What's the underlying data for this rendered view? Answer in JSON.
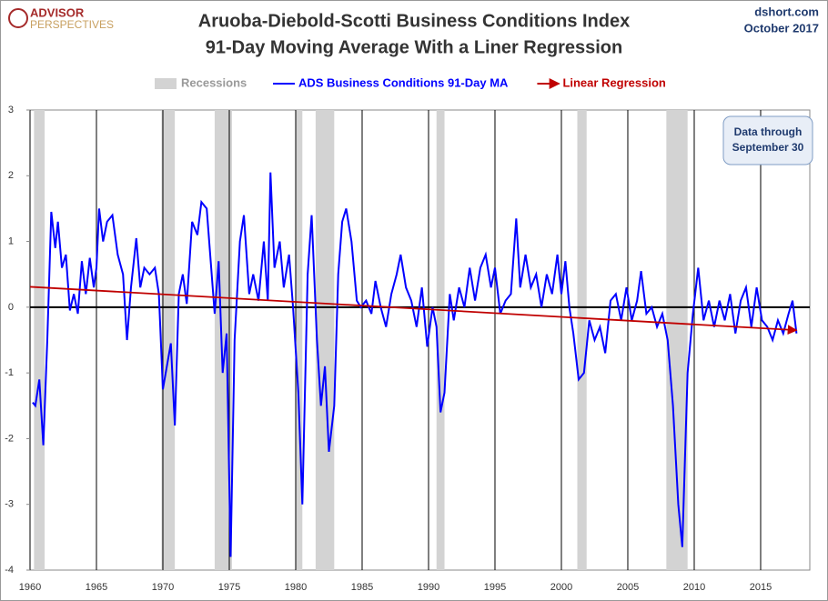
{
  "chart_data": {
    "type": "line",
    "title": "Aruoba-Diebold-Scotti Business Conditions Index",
    "subtitle": "91-Day Moving Average With a Liner Regression",
    "brand": {
      "name": "ADVISOR",
      "tagline": "PERSPECTIVES"
    },
    "source": "dshort.com",
    "date": "October 2017",
    "annotation": {
      "line1": "Data through",
      "line2": "September 30"
    },
    "shaded_regions": {
      "name": "Recessions",
      "color": "#d3d3d3",
      "ranges": [
        [
          1960.3,
          1961.1
        ],
        [
          1969.9,
          1970.9
        ],
        [
          1973.9,
          1975.2
        ],
        [
          1980.0,
          1980.5
        ],
        [
          1981.5,
          1982.9
        ],
        [
          1990.6,
          1991.2
        ],
        [
          2001.2,
          2001.9
        ],
        [
          2007.9,
          2009.5
        ]
      ]
    },
    "xlim": [
      1960,
      2018.7
    ],
    "xticks": [
      1960,
      1965,
      1970,
      1975,
      1980,
      1985,
      1990,
      1995,
      2000,
      2005,
      2010,
      2015
    ],
    "ylim": [
      -4,
      3
    ],
    "yticks": [
      3,
      2,
      1,
      0,
      -1,
      -2,
      -3,
      -4
    ],
    "grid": "x",
    "series": [
      {
        "name": "ADS Business Conditions 91-Day MA",
        "color": "#0000ff",
        "x": [
          1960.2,
          1960.4,
          1960.7,
          1961.0,
          1961.3,
          1961.6,
          1961.9,
          1962.1,
          1962.4,
          1962.7,
          1963.0,
          1963.3,
          1963.6,
          1963.9,
          1964.2,
          1964.5,
          1964.8,
          1965.0,
          1965.2,
          1965.5,
          1965.8,
          1966.2,
          1966.6,
          1967.0,
          1967.3,
          1967.6,
          1968.0,
          1968.3,
          1968.6,
          1969.0,
          1969.4,
          1969.7,
          1970.0,
          1970.3,
          1970.6,
          1970.9,
          1971.2,
          1971.5,
          1971.8,
          1972.2,
          1972.6,
          1972.9,
          1973.3,
          1973.6,
          1973.9,
          1974.2,
          1974.5,
          1974.8,
          1975.1,
          1975.4,
          1975.8,
          1976.1,
          1976.5,
          1976.8,
          1977.2,
          1977.6,
          1977.9,
          1978.1,
          1978.4,
          1978.8,
          1979.1,
          1979.5,
          1979.8,
          1980.2,
          1980.5,
          1980.9,
          1981.2,
          1981.6,
          1981.9,
          1982.2,
          1982.5,
          1982.9,
          1983.2,
          1983.5,
          1983.8,
          1984.2,
          1984.6,
          1984.9,
          1985.3,
          1985.7,
          1986.0,
          1986.4,
          1986.8,
          1987.2,
          1987.6,
          1987.9,
          1988.3,
          1988.7,
          1989.1,
          1989.5,
          1989.9,
          1990.3,
          1990.6,
          1990.9,
          1991.2,
          1991.6,
          1991.9,
          1992.3,
          1992.7,
          1993.1,
          1993.5,
          1993.9,
          1994.3,
          1994.7,
          1995.0,
          1995.4,
          1995.8,
          1996.2,
          1996.6,
          1996.9,
          1997.3,
          1997.7,
          1998.1,
          1998.5,
          1998.9,
          1999.3,
          1999.7,
          2000.0,
          2000.3,
          2000.6,
          2000.9,
          2001.3,
          2001.7,
          2002.1,
          2002.5,
          2002.9,
          2003.3,
          2003.7,
          2004.1,
          2004.5,
          2004.9,
          2005.3,
          2005.7,
          2006.0,
          2006.4,
          2006.8,
          2007.2,
          2007.6,
          2008.0,
          2008.4,
          2008.8,
          2009.1,
          2009.5,
          2009.9,
          2010.3,
          2010.7,
          2011.1,
          2011.5,
          2011.9,
          2012.3,
          2012.7,
          2013.1,
          2013.5,
          2013.9,
          2014.3,
          2014.7,
          2015.1,
          2015.5,
          2015.9,
          2016.3,
          2016.7,
          2017.1,
          2017.4,
          2017.7
        ],
        "values": [
          -1.45,
          -1.5,
          -1.1,
          -2.1,
          -0.5,
          1.45,
          0.9,
          1.3,
          0.6,
          0.8,
          -0.05,
          0.2,
          -0.1,
          0.7,
          0.2,
          0.75,
          0.3,
          0.6,
          1.5,
          1.0,
          1.3,
          1.4,
          0.8,
          0.5,
          -0.5,
          0.3,
          1.05,
          0.3,
          0.6,
          0.5,
          0.6,
          0.2,
          -1.25,
          -0.9,
          -0.55,
          -1.8,
          0.2,
          0.5,
          0.05,
          1.3,
          1.1,
          1.6,
          1.5,
          0.7,
          -0.1,
          0.7,
          -1.0,
          -0.4,
          -3.8,
          -0.5,
          1.0,
          1.4,
          0.2,
          0.5,
          0.1,
          1.0,
          0.1,
          2.05,
          0.6,
          1.0,
          0.3,
          0.8,
          0.0,
          -1.3,
          -3.0,
          0.5,
          1.4,
          -0.5,
          -1.5,
          -0.9,
          -2.2,
          -1.5,
          0.5,
          1.3,
          1.5,
          1.0,
          0.1,
          0.0,
          0.1,
          -0.1,
          0.4,
          0.0,
          -0.3,
          0.2,
          0.5,
          0.8,
          0.3,
          0.1,
          -0.3,
          0.3,
          -0.6,
          0.0,
          -0.3,
          -1.6,
          -1.3,
          0.2,
          -0.2,
          0.3,
          0.0,
          0.6,
          0.1,
          0.6,
          0.8,
          0.3,
          0.6,
          -0.1,
          0.1,
          0.2,
          1.35,
          0.3,
          0.8,
          0.3,
          0.5,
          0.0,
          0.5,
          0.2,
          0.8,
          0.2,
          0.7,
          0.0,
          -0.4,
          -1.1,
          -1.0,
          -0.2,
          -0.5,
          -0.3,
          -0.7,
          0.1,
          0.2,
          -0.2,
          0.3,
          -0.2,
          0.1,
          0.55,
          -0.1,
          0.0,
          -0.3,
          -0.1,
          -0.5,
          -1.5,
          -3.0,
          -3.65,
          -1.0,
          -0.1,
          0.6,
          -0.2,
          0.1,
          -0.3,
          0.1,
          -0.2,
          0.2,
          -0.4,
          0.1,
          0.3,
          -0.3,
          0.3,
          -0.2,
          -0.3,
          -0.5,
          -0.2,
          -0.4,
          -0.1,
          0.1,
          -0.4
        ]
      },
      {
        "name": "Linear Regression",
        "color": "#c00000",
        "x": [
          1960,
          2017.7
        ],
        "values": [
          0.31,
          -0.35
        ]
      }
    ]
  }
}
